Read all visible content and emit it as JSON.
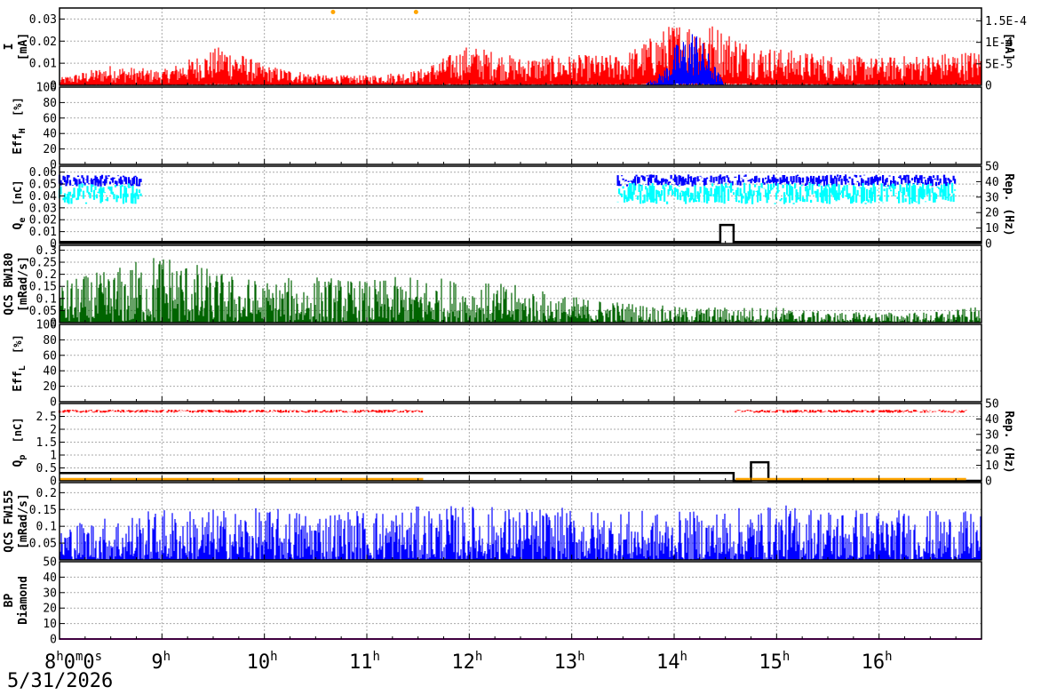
{
  "window": {
    "date": "5/31/2026"
  },
  "chart_data": {
    "type": "line",
    "x_axis": {
      "start_hour": 8,
      "end_hour": 17,
      "first_label": {
        "h": "8",
        "hs": "h",
        "m": "0",
        "ms": "m",
        "s": "0",
        "ss": "s"
      },
      "labels": [
        {
          "v": "9",
          "s": "h"
        },
        {
          "v": "10",
          "s": "h"
        },
        {
          "v": "11",
          "s": "h"
        },
        {
          "v": "12",
          "s": "h"
        },
        {
          "v": "13",
          "s": "h"
        },
        {
          "v": "14",
          "s": "h"
        },
        {
          "v": "15",
          "s": "h"
        },
        {
          "v": "16",
          "s": "h"
        }
      ]
    },
    "panels": [
      {
        "id": "current",
        "ylabel": "I",
        "ylabel_unit": "[mA]",
        "ylim": [
          0,
          0.035
        ],
        "left_ticks": [
          "0",
          "0.01",
          "0.02",
          "0.03"
        ],
        "right_ylim": [
          0,
          0.00018
        ],
        "right_ticks": [
          "0",
          "5E-5",
          "1E-4",
          "1.5E-4"
        ],
        "right_label": "[mA]",
        "series": [
          {
            "axis": "left",
            "color": "#ff0000",
            "style": "noise",
            "points": [
              [
                8,
                0.003
              ],
              [
                8.5,
                0.008
              ],
              [
                9,
                0.006
              ],
              [
                9.6,
                0.016
              ],
              [
                10,
                0.008
              ],
              [
                10.6,
                0.004
              ],
              [
                11,
                0.004
              ],
              [
                11.5,
                0.006
              ],
              [
                12,
                0.016
              ],
              [
                12.5,
                0.011
              ],
              [
                13,
                0.012
              ],
              [
                13.5,
                0.012
              ],
              [
                14,
                0.025
              ],
              [
                14.3,
                0.026
              ],
              [
                14.8,
                0.016
              ],
              [
                15.5,
                0.012
              ],
              [
                16,
                0.011
              ],
              [
                17,
                0.014
              ]
            ]
          },
          {
            "axis": "right",
            "color": "#0000ff",
            "style": "noise",
            "points": [
              [
                13.7,
                0
              ],
              [
                13.9,
                3e-05
              ],
              [
                14,
                8e-05
              ],
              [
                14.2,
                0.00012
              ],
              [
                14.35,
                6e-05
              ],
              [
                14.5,
                0
              ]
            ]
          }
        ],
        "markers": {
          "color": "#ffa500",
          "x": [
            10.67,
            11.48
          ],
          "y": 0.034
        }
      },
      {
        "id": "effh",
        "ylabel": "Eff",
        "ylabel_sub": "H",
        "ylabel_unit": "[%]",
        "ylim": [
          0,
          100
        ],
        "left_ticks": [
          "0",
          "20",
          "40",
          "60",
          "80",
          "100"
        ],
        "series": []
      },
      {
        "id": "qe",
        "ylabel": "Q",
        "ylabel_sub": "e",
        "ylabel_unit": "[nC]",
        "ylim": [
          0,
          0.065
        ],
        "left_ticks": [
          "0",
          "0.01",
          "0.02",
          "0.03",
          "0.04",
          "0.05",
          "0.06"
        ],
        "right_ylim": [
          0,
          50
        ],
        "right_ticks": [
          "0",
          "10",
          "20",
          "30",
          "40",
          "50"
        ],
        "right_label": "Rep. (Hz)",
        "series": [
          {
            "axis": "left",
            "color": "#0000ff",
            "style": "band",
            "center": 0.053,
            "spread": 0.005,
            "ranges": [
              [
                8,
                8.8
              ],
              [
                13.45,
                16.75
              ]
            ]
          },
          {
            "axis": "left",
            "color": "#00ffff",
            "style": "band",
            "center": 0.042,
            "spread": 0.009,
            "ranges": [
              [
                8,
                8.8
              ],
              [
                13.45,
                16.75
              ]
            ]
          },
          {
            "axis": "right",
            "color": "#000000",
            "style": "step",
            "points": [
              [
                8,
                1
              ],
              [
                14.45,
                1
              ],
              [
                14.45,
                12
              ],
              [
                14.58,
                12
              ],
              [
                14.58,
                1
              ],
              [
                17,
                1
              ]
            ]
          }
        ]
      },
      {
        "id": "qcs_bw",
        "ylabel": "QCS BW180",
        "ylabel_unit": "[mRad/s]",
        "ylim": [
          0,
          0.32
        ],
        "left_ticks": [
          "0",
          "0.05",
          "0.1",
          "0.15",
          "0.2",
          "0.25",
          "0.3"
        ],
        "series": [
          {
            "axis": "left",
            "color": "#006400",
            "style": "spiky",
            "points": [
              [
                8,
                0.08
              ],
              [
                8.5,
                0.1
              ],
              [
                9,
                0.14
              ],
              [
                9.5,
                0.1
              ],
              [
                10,
                0.08
              ],
              [
                10.5,
                0.09
              ],
              [
                11,
                0.08
              ],
              [
                11.5,
                0.09
              ],
              [
                12,
                0.08
              ],
              [
                12.5,
                0.07
              ],
              [
                13,
                0.05
              ],
              [
                13.5,
                0.04
              ],
              [
                14,
                0.03
              ],
              [
                14.5,
                0.03
              ],
              [
                15,
                0.03
              ],
              [
                15.5,
                0.02
              ],
              [
                16,
                0.02
              ],
              [
                16.5,
                0.02
              ],
              [
                17,
                0.03
              ]
            ]
          }
        ]
      },
      {
        "id": "effl",
        "ylabel": "Eff",
        "ylabel_sub": "L",
        "ylabel_unit": "[%]",
        "ylim": [
          0,
          100
        ],
        "left_ticks": [
          "0",
          "20",
          "40",
          "60",
          "80",
          "100"
        ],
        "series": []
      },
      {
        "id": "qp",
        "ylabel": "Q",
        "ylabel_sub": "p",
        "ylabel_unit": "[nC]",
        "ylim": [
          0,
          3.0
        ],
        "left_ticks": [
          "0",
          "0.5",
          "1",
          "1.5",
          "2",
          "2.5"
        ],
        "right_ylim": [
          0,
          50
        ],
        "right_ticks": [
          "0",
          "10",
          "20",
          "30",
          "40",
          "50"
        ],
        "right_label": "Rep. (Hz)",
        "series": [
          {
            "axis": "left",
            "color": "#ff0000",
            "style": "band",
            "center": 2.7,
            "spread": 0.06,
            "ranges": [
              [
                8,
                11.55
              ],
              [
                14.6,
                16.85
              ]
            ]
          },
          {
            "axis": "right",
            "color": "#000000",
            "style": "step",
            "points": [
              [
                8,
                5
              ],
              [
                14.58,
                5
              ],
              [
                14.58,
                0
              ],
              [
                14.75,
                0
              ],
              [
                14.75,
                12
              ],
              [
                14.92,
                12
              ],
              [
                14.92,
                0
              ],
              [
                17,
                0
              ]
            ]
          },
          {
            "axis": "right",
            "color": "#ffa500",
            "style": "segments",
            "segments": [
              [
                [
                  8,
                  1
                ],
                [
                  11.55,
                  1
                ]
              ],
              [
                [
                  14.6,
                  1
                ],
                [
                  16.85,
                  1
                ]
              ]
            ]
          }
        ]
      },
      {
        "id": "qcs_fw",
        "ylabel": "QCS FW155",
        "ylabel_unit": "[mRad/s]",
        "ylim": [
          0,
          0.23
        ],
        "left_ticks": [
          "0.05",
          "0.1",
          "0.15",
          "0.2"
        ],
        "series": [
          {
            "axis": "left",
            "color": "#0000ff",
            "style": "spiky",
            "points": [
              [
                8,
                0.05
              ],
              [
                9,
                0.07
              ],
              [
                10,
                0.07
              ],
              [
                11,
                0.07
              ],
              [
                12,
                0.075
              ],
              [
                13,
                0.07
              ],
              [
                14,
                0.065
              ],
              [
                15,
                0.075
              ],
              [
                16,
                0.07
              ],
              [
                17,
                0.065
              ]
            ]
          }
        ]
      },
      {
        "id": "bp_diamond",
        "ylabel": "BP",
        "ylabel2": "Diamond",
        "ylim": [
          0,
          50
        ],
        "left_ticks": [
          "0",
          "10",
          "20",
          "30",
          "40",
          "50"
        ],
        "series": [
          {
            "axis": "left",
            "color": "#ff00ff",
            "style": "flat",
            "points": [
              [
                8,
                0
              ],
              [
                17,
                0
              ]
            ]
          }
        ]
      }
    ]
  }
}
